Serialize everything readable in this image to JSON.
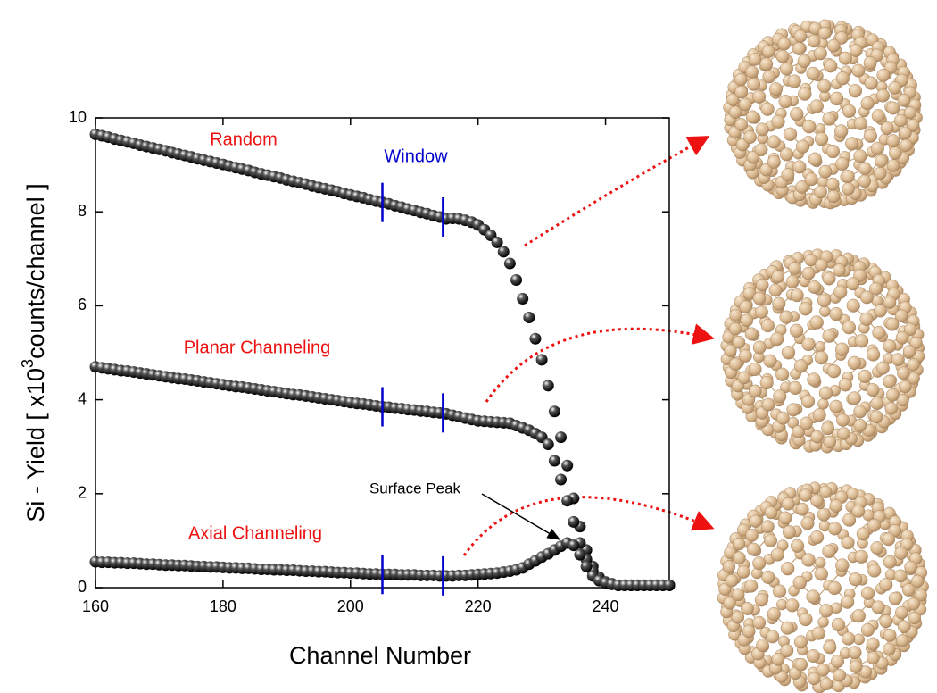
{
  "chart_data": {
    "type": "scatter",
    "xlabel": "Channel Number",
    "ylabel": {
      "pre": "Si - Yield [ x10",
      "sup": "3",
      "post": "counts/channel ]"
    },
    "xlim": [
      160,
      250
    ],
    "ylim": [
      0,
      10
    ],
    "xticks": [
      160,
      180,
      200,
      220,
      240
    ],
    "yticks": [
      0,
      2,
      4,
      6,
      8,
      10
    ],
    "window": [
      205,
      214.5
    ],
    "window_label": "Window",
    "window_color": "#0000cc",
    "annotation": "Surface Peak",
    "x": [
      160,
      161,
      162,
      163,
      164,
      165,
      166,
      167,
      168,
      169,
      170,
      171,
      172,
      173,
      174,
      175,
      176,
      177,
      178,
      179,
      180,
      181,
      182,
      183,
      184,
      185,
      186,
      187,
      188,
      189,
      190,
      191,
      192,
      193,
      194,
      195,
      196,
      197,
      198,
      199,
      200,
      201,
      202,
      203,
      204,
      205,
      206,
      207,
      208,
      209,
      210,
      211,
      212,
      213,
      214,
      215,
      216,
      217,
      218,
      219,
      220,
      221,
      222,
      223,
      224,
      225,
      226,
      227,
      228,
      229,
      230,
      231,
      232,
      233,
      234,
      235,
      236,
      237,
      238,
      239,
      240,
      241,
      242,
      243,
      244,
      245,
      246,
      247,
      248,
      249,
      250
    ],
    "series": [
      {
        "name": "Random",
        "color": "#ee1111",
        "values": [
          9.65,
          9.62,
          9.59,
          9.55,
          9.52,
          9.49,
          9.46,
          9.42,
          9.39,
          9.36,
          9.33,
          9.3,
          9.26,
          9.23,
          9.2,
          9.17,
          9.13,
          9.1,
          9.07,
          9.04,
          9.01,
          8.97,
          8.94,
          8.91,
          8.88,
          8.84,
          8.81,
          8.78,
          8.75,
          8.72,
          8.68,
          8.65,
          8.62,
          8.59,
          8.55,
          8.52,
          8.49,
          8.46,
          8.43,
          8.39,
          8.36,
          8.33,
          8.3,
          8.26,
          8.23,
          8.2,
          8.17,
          8.13,
          8.1,
          8.06,
          8.03,
          7.99,
          7.96,
          7.92,
          7.89,
          7.85,
          7.86,
          7.85,
          7.82,
          7.78,
          7.72,
          7.62,
          7.5,
          7.35,
          7.15,
          6.9,
          6.55,
          6.15,
          5.75,
          5.3,
          4.85,
          4.3,
          3.75,
          3.2,
          2.6,
          1.9,
          1.3,
          0.8,
          0.45,
          0.22,
          0.12,
          0.08,
          0.05,
          0.05,
          0.05,
          0.05,
          0.05,
          0.05,
          0.05,
          0.05,
          0.05
        ]
      },
      {
        "name": "Planar Channeling",
        "color": "#ee1111",
        "values": [
          4.7,
          4.68,
          4.66,
          4.64,
          4.62,
          4.61,
          4.59,
          4.57,
          4.55,
          4.53,
          4.51,
          4.49,
          4.47,
          4.45,
          4.44,
          4.42,
          4.4,
          4.38,
          4.36,
          4.34,
          4.32,
          4.3,
          4.28,
          4.27,
          4.25,
          4.23,
          4.21,
          4.19,
          4.17,
          4.15,
          4.13,
          4.11,
          4.1,
          4.08,
          4.06,
          4.04,
          4.02,
          4.0,
          3.98,
          3.96,
          3.94,
          3.92,
          3.91,
          3.89,
          3.87,
          3.85,
          3.84,
          3.82,
          3.81,
          3.79,
          3.78,
          3.76,
          3.75,
          3.73,
          3.72,
          3.7,
          3.67,
          3.64,
          3.61,
          3.58,
          3.55,
          3.54,
          3.53,
          3.52,
          3.51,
          3.5,
          3.45,
          3.4,
          3.35,
          3.28,
          3.2,
          3.05,
          2.7,
          2.3,
          1.85,
          1.4,
          0.95,
          0.6,
          0.35,
          0.2,
          0.12,
          0.08,
          0.05,
          0.05,
          0.05,
          0.05,
          0.05,
          0.05,
          0.05,
          0.05,
          0.05
        ]
      },
      {
        "name": "Axial Channeling",
        "color": "#ee1111",
        "values": [
          0.55,
          0.54,
          0.54,
          0.53,
          0.53,
          0.52,
          0.52,
          0.51,
          0.5,
          0.5,
          0.49,
          0.48,
          0.48,
          0.47,
          0.47,
          0.46,
          0.45,
          0.45,
          0.44,
          0.44,
          0.43,
          0.42,
          0.42,
          0.41,
          0.41,
          0.4,
          0.39,
          0.39,
          0.38,
          0.38,
          0.37,
          0.37,
          0.36,
          0.35,
          0.35,
          0.34,
          0.34,
          0.33,
          0.32,
          0.32,
          0.31,
          0.31,
          0.3,
          0.29,
          0.29,
          0.28,
          0.28,
          0.28,
          0.27,
          0.27,
          0.27,
          0.26,
          0.26,
          0.26,
          0.25,
          0.25,
          0.25,
          0.26,
          0.26,
          0.27,
          0.28,
          0.29,
          0.3,
          0.31,
          0.33,
          0.35,
          0.38,
          0.42,
          0.5,
          0.57,
          0.65,
          0.72,
          0.8,
          0.88,
          0.95,
          0.9,
          0.7,
          0.45,
          0.25,
          0.15,
          0.1,
          0.07,
          0.05,
          0.05,
          0.05,
          0.05,
          0.05,
          0.05,
          0.05,
          0.05,
          0.05
        ]
      }
    ]
  }
}
